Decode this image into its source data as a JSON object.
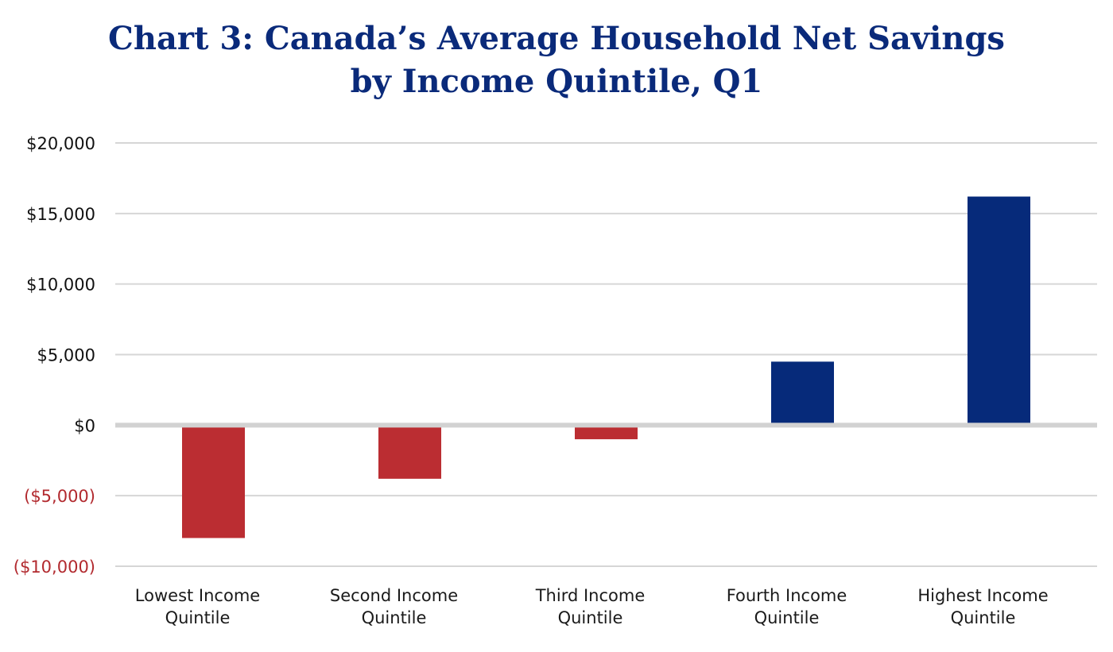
{
  "chart_data": {
    "type": "bar",
    "title_lines": [
      "Chart 3: Canada’s Average Household Net Savings",
      "by Income Quintile, Q1"
    ],
    "categories": [
      [
        "Lowest Income",
        "Quintile"
      ],
      [
        "Second Income",
        "Quintile"
      ],
      [
        "Third Income",
        "Quintile"
      ],
      [
        "Fourth Income",
        "Quintile"
      ],
      [
        "Highest Income",
        "Quintile"
      ]
    ],
    "values": [
      -8000,
      -3800,
      -1000,
      4500,
      16200
    ],
    "yticks": [
      20000,
      15000,
      10000,
      5000,
      0,
      -5000,
      -10000
    ],
    "ytick_labels": [
      "$20,000",
      "$15,000",
      "$10,000",
      "$5,000",
      "$0",
      "($5,000)",
      "($10,000)"
    ],
    "ylim": [
      -10000,
      20000
    ],
    "grid": true,
    "legend": "none",
    "colors": {
      "positive": "#062a7a",
      "negative": "#bb2d32",
      "negative_tick": "#b22a2f",
      "tick": "#111111",
      "grid": "#d6d6d6",
      "zero_line": "#d2d2d2"
    }
  }
}
